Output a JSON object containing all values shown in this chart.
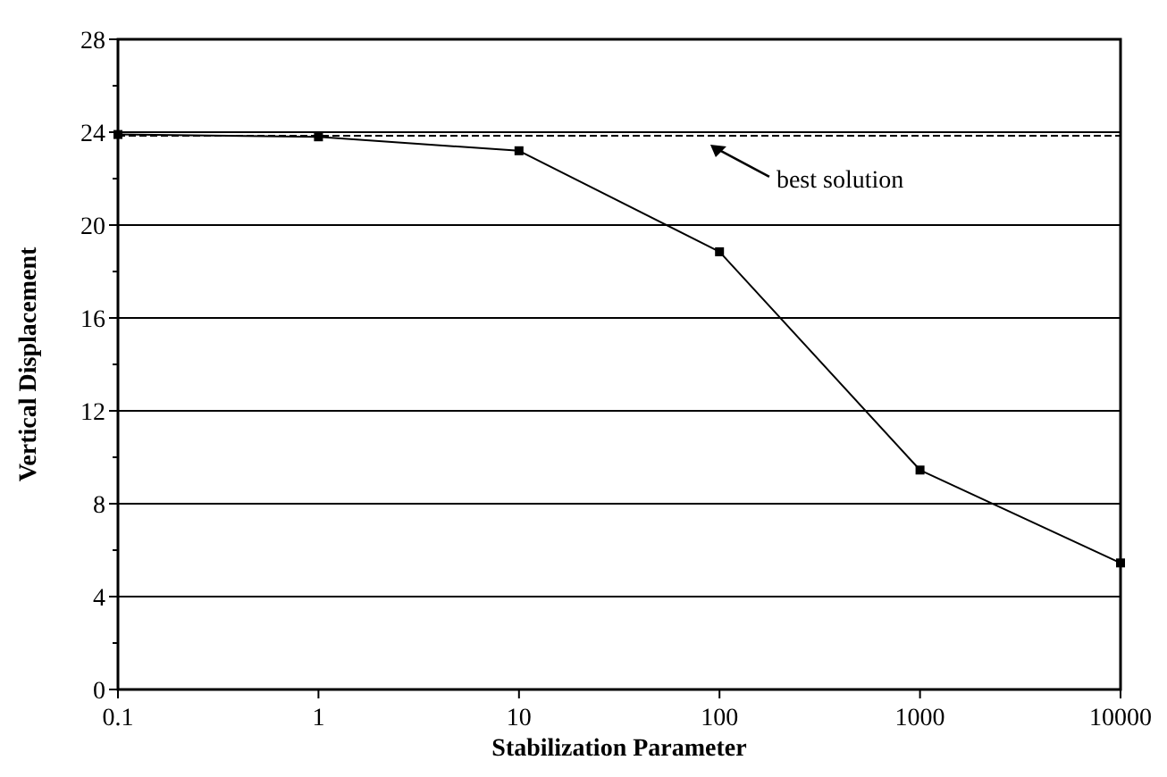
{
  "chart_data": {
    "type": "line",
    "xlabel": "Stabilization Parameter",
    "ylabel": "Vertical Displacement",
    "x": [
      0.1,
      1,
      10,
      100,
      1000,
      10000
    ],
    "series": [
      {
        "color": "#000000",
        "values": [
          23.9,
          23.8,
          23.2,
          18.85,
          9.45,
          5.45
        ]
      }
    ],
    "log": "x",
    "xlim": [
      0.1,
      10000
    ],
    "xticks": [
      0.1,
      1,
      10,
      100,
      1000,
      10000
    ],
    "ylim": [
      0,
      28
    ],
    "yticks": [
      0,
      4,
      8,
      12,
      16,
      20,
      24,
      28
    ],
    "grid": "y",
    "marker": "square",
    "line_style": "solid",
    "ref_lines": [
      {
        "axis": "y",
        "value": 23.85,
        "line_style": "dashed",
        "color": "#000000"
      }
    ],
    "annotations": [
      {
        "text": "best solution",
        "x": 90,
        "y": 23.85
      }
    ]
  }
}
